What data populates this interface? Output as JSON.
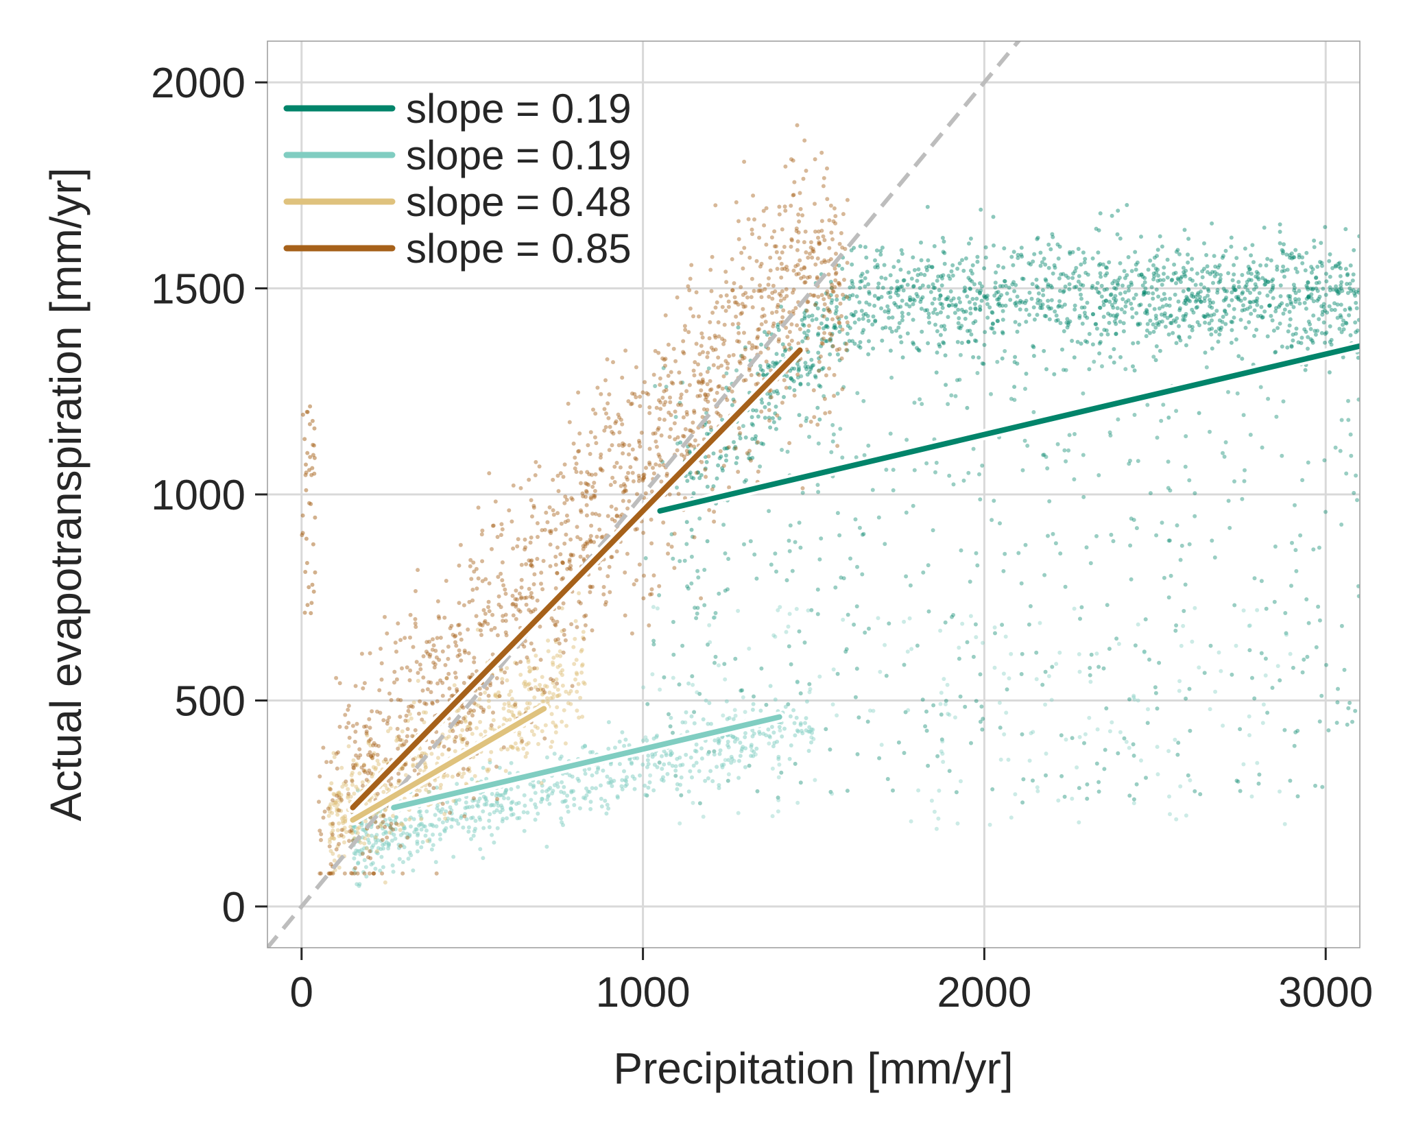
{
  "chart_data": {
    "type": "scatter",
    "title": "",
    "xlabel": "Precipitation [mm/yr]",
    "ylabel": "Actual evapotranspiration [mm/yr]",
    "xlim": [
      -100,
      3100
    ],
    "ylim": [
      -100,
      2100
    ],
    "xticks": [
      0,
      1000,
      2000,
      3000
    ],
    "yticks": [
      0,
      500,
      1000,
      1500,
      2000
    ],
    "grid": true,
    "legend_position": "top-left",
    "reference_line": {
      "type": "1:1",
      "style": "dashed",
      "color": "#bdbdbd"
    },
    "series": [
      {
        "name": "slope = 0.19",
        "color": "#01846a",
        "scatter_region": "high precipitation, ET saturating near 1400-1500",
        "fit": {
          "x": [
            1050,
            3100
          ],
          "y": [
            960,
            1360
          ],
          "slope": 0.19
        }
      },
      {
        "name": "slope = 0.19",
        "color": "#80cdc1",
        "scatter_region": "low ET band 150-450 over P 150-1500",
        "fit": {
          "x": [
            270,
            1400
          ],
          "y": [
            240,
            460
          ],
          "slope": 0.19
        }
      },
      {
        "name": "slope = 0.48",
        "color": "#dfc27d",
        "scatter_region": "dry regime P < 800",
        "fit": {
          "x": [
            150,
            710
          ],
          "y": [
            210,
            480
          ],
          "slope": 0.48
        }
      },
      {
        "name": "slope = 0.85",
        "color": "#a6611a",
        "scatter_region": "ET rising with P up to ~1500",
        "fit": {
          "x": [
            150,
            1460
          ],
          "y": [
            240,
            1350
          ],
          "slope": 0.85
        }
      }
    ]
  }
}
